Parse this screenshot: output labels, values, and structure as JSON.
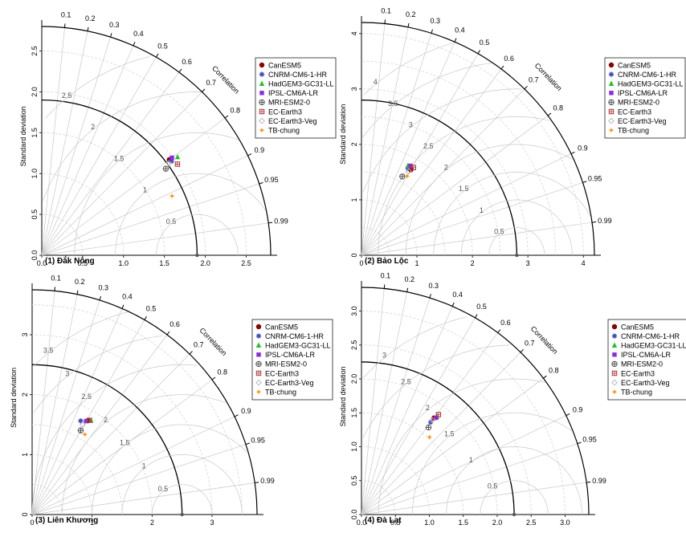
{
  "labels": {
    "correlation": "Correlation",
    "standard_deviation": "Standard deviation"
  },
  "legend_entries": [
    "CanESM5",
    "CNRM-CM6-1-HR",
    "HadGEM3-GC31-LL",
    "IPSL-CM6A-LR",
    "MRI-ESM2-0",
    "EC-Earth3",
    "EC-Earth3-Veg",
    "TB-chung"
  ],
  "colors": {
    "CanESM5": "#8b0000",
    "CNRM-CM6-1-HR": "#3b4cc0",
    "HadGEM3-GC31-LL": "#22c422",
    "IPSL-CM6A-LR": "#8a2be2",
    "MRI-ESM2-0": "#555555",
    "EC-Earth3": "#b03030",
    "EC-Earth3-Veg": "#bbbbbb",
    "TB-chung": "#ff8c00"
  },
  "corr_ticks": [
    "0.1",
    "0.2",
    "0.3",
    "0.4",
    "0.5",
    "0.6",
    "0.7",
    "0.8",
    "0.9",
    "0.95",
    "0.99"
  ],
  "chart_data": [
    {
      "type": "scatter",
      "panel_label": "(1) Đắk Nông",
      "ref_sd": 1.9,
      "max_sd": 2.8,
      "axis_ticks": [
        "0.0",
        "0.5",
        "1.0",
        "1.5",
        "2.0",
        "2.5"
      ],
      "rms_ticks": [
        "0.5",
        "1",
        "1.5",
        "2",
        "2.5"
      ],
      "points": [
        {
          "name": "CanESM5",
          "correlation": 0.8,
          "sd": 1.95
        },
        {
          "name": "CNRM-CM6-1-HR",
          "correlation": 0.81,
          "sd": 1.96
        },
        {
          "name": "HadGEM3-GC31-LL",
          "correlation": 0.81,
          "sd": 2.05
        },
        {
          "name": "IPSL-CM6A-LR",
          "correlation": 0.8,
          "sd": 1.99
        },
        {
          "name": "MRI-ESM2-0",
          "correlation": 0.82,
          "sd": 1.85
        },
        {
          "name": "EC-Earth3",
          "correlation": 0.83,
          "sd": 2.0
        },
        {
          "name": "EC-Earth3-Veg",
          "correlation": 0.81,
          "sd": 1.92
        },
        {
          "name": "TB-chung",
          "correlation": 0.91,
          "sd": 1.75
        }
      ]
    },
    {
      "type": "scatter",
      "panel_label": "(2) Bảo Lộc",
      "ref_sd": 2.8,
      "max_sd": 4.2,
      "axis_ticks": [
        "0",
        "1",
        "2",
        "3",
        "4"
      ],
      "rms_ticks": [
        "0.5",
        "1",
        "1.5",
        "2",
        "2.5",
        "3",
        "3.5",
        "4"
      ],
      "points": [
        {
          "name": "CanESM5",
          "correlation": 0.5,
          "sd": 1.78
        },
        {
          "name": "CNRM-CM6-1-HR",
          "correlation": 0.47,
          "sd": 1.78
        },
        {
          "name": "HadGEM3-GC31-LL",
          "correlation": 0.46,
          "sd": 1.82
        },
        {
          "name": "IPSL-CM6A-LR",
          "correlation": 0.48,
          "sd": 1.84
        },
        {
          "name": "MRI-ESM2-0",
          "correlation": 0.46,
          "sd": 1.6
        },
        {
          "name": "EC-Earth3",
          "correlation": 0.51,
          "sd": 1.84
        },
        {
          "name": "EC-Earth3-Veg",
          "correlation": 0.49,
          "sd": 1.74
        },
        {
          "name": "TB-chung",
          "correlation": 0.5,
          "sd": 1.65
        }
      ]
    },
    {
      "type": "scatter",
      "panel_label": "(3) Liên Khương",
      "ref_sd": 2.5,
      "max_sd": 3.75,
      "axis_ticks": [
        "0",
        "1",
        "2",
        "3"
      ],
      "rms_ticks": [
        "0.5",
        "1",
        "1.5",
        "2",
        "2.5",
        "3",
        "3.5"
      ],
      "points": [
        {
          "name": "CanESM5",
          "correlation": 0.51,
          "sd": 1.82
        },
        {
          "name": "CNRM-CM6-1-HR",
          "correlation": 0.46,
          "sd": 1.76
        },
        {
          "name": "HadGEM3-GC31-LL",
          "correlation": 0.53,
          "sd": 1.85
        },
        {
          "name": "IPSL-CM6A-LR",
          "correlation": 0.5,
          "sd": 1.8
        },
        {
          "name": "MRI-ESM2-0",
          "correlation": 0.5,
          "sd": 1.62
        },
        {
          "name": "EC-Earth3",
          "correlation": 0.52,
          "sd": 1.84
        },
        {
          "name": "EC-Earth3-Veg",
          "correlation": 0.49,
          "sd": 1.72
        },
        {
          "name": "TB-chung",
          "correlation": 0.55,
          "sd": 1.6
        }
      ]
    },
    {
      "type": "scatter",
      "panel_label": "(4) Đà Lạt",
      "ref_sd": 2.25,
      "max_sd": 3.35,
      "axis_ticks": [
        "0.0",
        "0.5",
        "1.0",
        "1.5",
        "2.0",
        "2.5",
        "3.0"
      ],
      "rms_ticks": [
        "0.5",
        "1",
        "1.5",
        "2",
        "2.5",
        "3"
      ],
      "points": [
        {
          "name": "CanESM5",
          "correlation": 0.6,
          "sd": 1.78
        },
        {
          "name": "CNRM-CM6-1-HR",
          "correlation": 0.6,
          "sd": 1.7
        },
        {
          "name": "HadGEM3-GC31-LL",
          "correlation": 0.61,
          "sd": 1.82
        },
        {
          "name": "IPSL-CM6A-LR",
          "correlation": 0.61,
          "sd": 1.8
        },
        {
          "name": "MRI-ESM2-0",
          "correlation": 0.61,
          "sd": 1.62
        },
        {
          "name": "EC-Earth3",
          "correlation": 0.61,
          "sd": 1.86
        },
        {
          "name": "EC-Earth3-Veg",
          "correlation": 0.6,
          "sd": 1.74
        },
        {
          "name": "TB-chung",
          "correlation": 0.66,
          "sd": 1.52
        }
      ]
    }
  ]
}
